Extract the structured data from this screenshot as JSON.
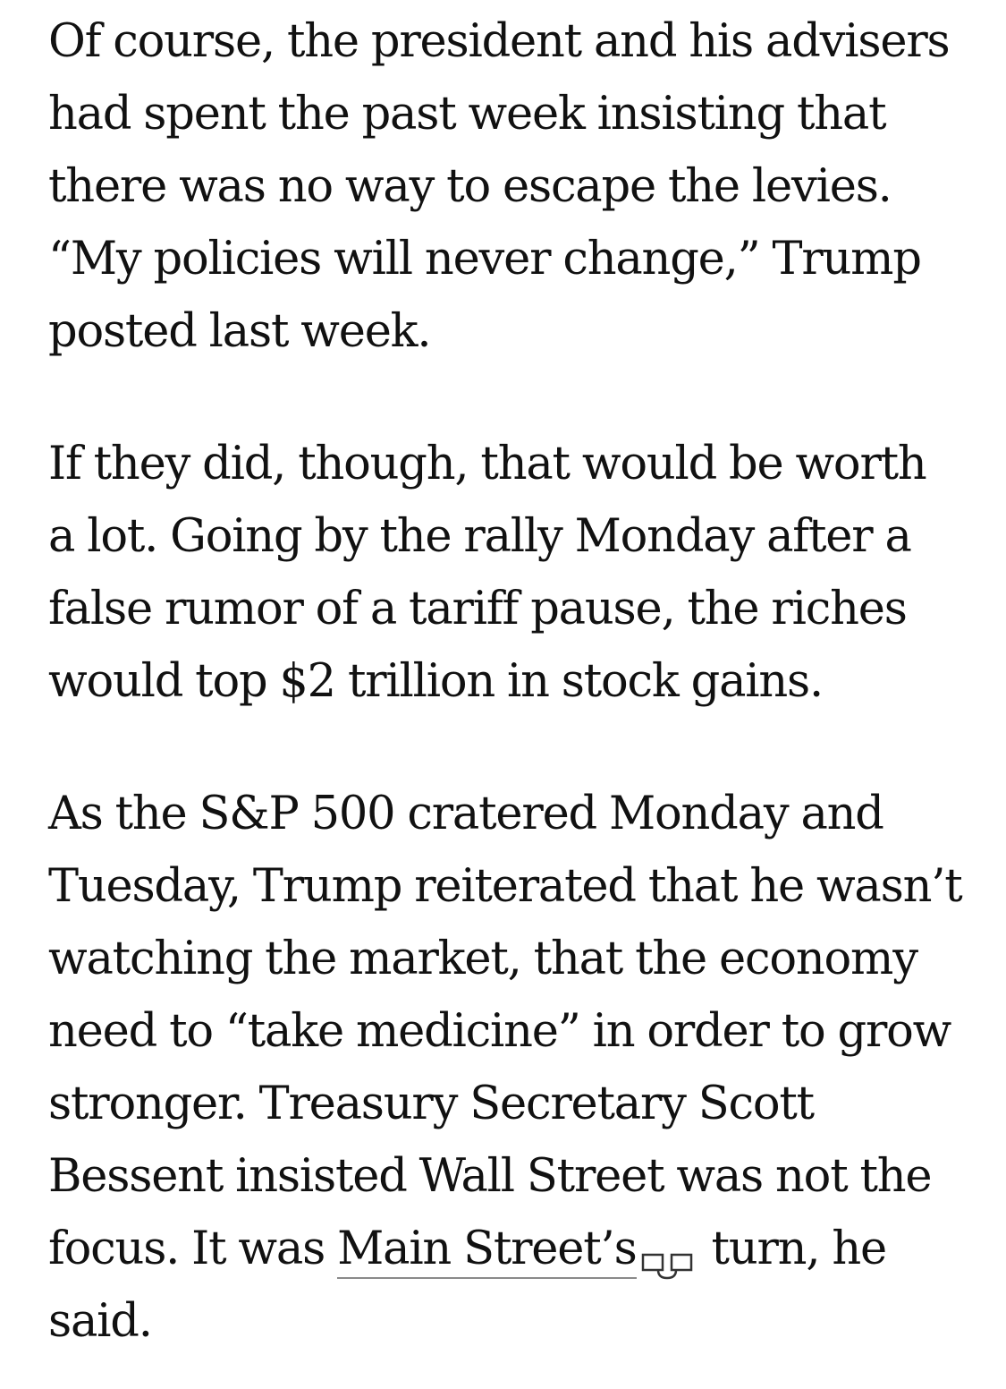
{
  "article": {
    "paragraphs": [
      {
        "lines": [
          "Of course, the president and his advisers",
          "had spent the past week insisting that",
          "there was no way to escape the levies.",
          "“My policies will never change,” Trump",
          "posted last week."
        ]
      },
      {
        "lines": [
          "If they did, though, that would be worth",
          "a lot. Going by the rally Monday after a",
          "false rumor of a tariff pause, the riches",
          "would top $2 trillion in stock gains."
        ]
      },
      {
        "lines": [
          "As the S&P 500 cratered Monday and",
          "Tuesday, Trump reiterated that he wasn’t",
          "watching the market, that the economy",
          "need to “take medicine” in order to grow",
          "stronger. Treasury Secretary Scott",
          "Bessent insisted Wall Street was not the"
        ],
        "link_line": {
          "before": "focus. It was ",
          "link_text": "Main Street’s",
          "link_icon": "external-link-icon",
          "after": " turn, he"
        },
        "last_line": "said."
      }
    ]
  }
}
